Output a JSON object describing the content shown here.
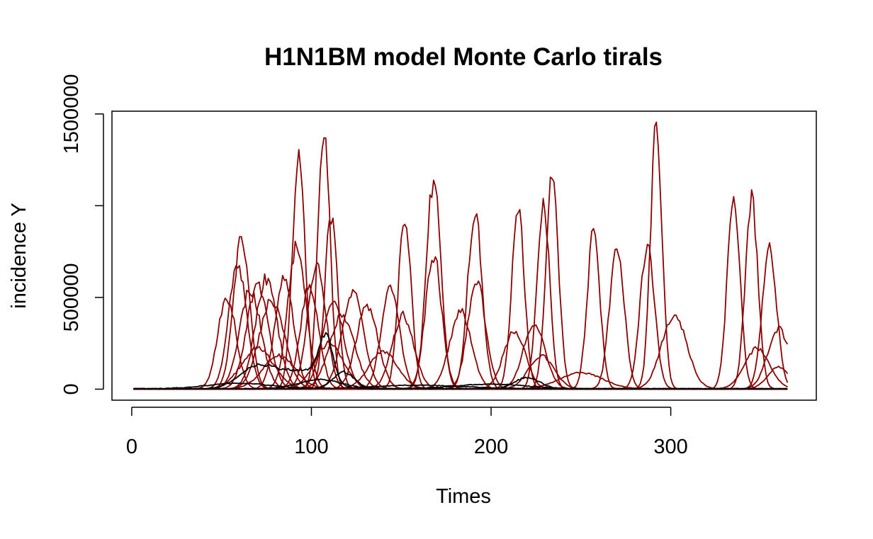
{
  "chart_data": {
    "type": "line",
    "title": "H1N1BM model Monte Carlo tirals",
    "xlabel": "Times",
    "ylabel": "incidence Y",
    "xlim": [
      -11,
      381
    ],
    "ylim": [
      -60000,
      1515000
    ],
    "x_ticks": [
      0,
      100,
      200,
      300
    ],
    "y_ticks": [
      0,
      500000,
      1500000
    ],
    "y_minor_ticks": [
      1000000
    ],
    "x_tick_labels": [
      "0",
      "100",
      "200",
      "300"
    ],
    "y_tick_labels": [
      "0",
      "500000",
      "1500000"
    ],
    "grid": false,
    "legend": "none",
    "colors": {
      "trial": "#8b0000",
      "baseline": "#000000"
    },
    "series_style": {
      "trial_curve_shape": "epidemic-peaks",
      "baseline_curve_shape": "low-waves"
    },
    "series": [
      {
        "kind": "trial",
        "peaks": [
          [
            61,
            820000,
            4.5
          ],
          [
            228,
            180000,
            7
          ]
        ]
      },
      {
        "kind": "trial",
        "peaks": [
          [
            93,
            1240000,
            3.5
          ],
          [
            292,
            1420000,
            3.2
          ]
        ]
      },
      {
        "kind": "trial",
        "peaks": [
          [
            107,
            1450000,
            3.3
          ],
          [
            345,
            1040000,
            3.5
          ]
        ]
      },
      {
        "kind": "trial",
        "peaks": [
          [
            168,
            1140000,
            4
          ],
          [
            335,
            1070000,
            3.5
          ]
        ]
      },
      {
        "kind": "trial",
        "peaks": [
          [
            234,
            1140000,
            3.5
          ],
          [
            355,
            760000,
            4
          ]
        ]
      },
      {
        "kind": "trial",
        "peaks": [
          [
            191,
            960000,
            4
          ],
          [
            257,
            850000,
            3.5
          ]
        ]
      },
      {
        "kind": "trial",
        "peaks": [
          [
            111,
            940000,
            3.5
          ],
          [
            270,
            780000,
            4
          ]
        ]
      },
      {
        "kind": "trial",
        "peaks": [
          [
            152,
            940000,
            3.5
          ],
          [
            229,
            1020000,
            3.5
          ]
        ]
      },
      {
        "kind": "trial",
        "peaks": [
          [
            215,
            980000,
            3.5
          ],
          [
            287,
            780000,
            4
          ]
        ]
      },
      {
        "kind": "trial",
        "peaks": [
          [
            92,
            790000,
            5
          ],
          [
            302,
            400000,
            7
          ]
        ]
      },
      {
        "kind": "trial",
        "peaks": [
          [
            59,
            680000,
            5
          ],
          [
            168,
            730000,
            4.5
          ]
        ]
      },
      {
        "kind": "trial",
        "peaks": [
          [
            75,
            600000,
            6
          ],
          [
            192,
            580000,
            5
          ]
        ]
      },
      {
        "kind": "trial",
        "peaks": [
          [
            70,
            560000,
            6
          ],
          [
            144,
            550000,
            5
          ]
        ]
      },
      {
        "kind": "trial",
        "peaks": [
          [
            66,
            540000,
            6
          ],
          [
            112,
            470000,
            6
          ]
        ]
      },
      {
        "kind": "trial",
        "peaks": [
          [
            53,
            500000,
            5
          ],
          [
            123,
            520000,
            6
          ]
        ]
      },
      {
        "kind": "trial",
        "peaks": [
          [
            85,
            620000,
            5
          ],
          [
            348,
            220000,
            7
          ]
        ]
      },
      {
        "kind": "trial",
        "peaks": [
          [
            103,
            680000,
            5
          ],
          [
            360,
            330000,
            6
          ]
        ]
      },
      {
        "kind": "trial",
        "peaks": [
          [
            131,
            450000,
            6
          ],
          [
            213,
            320000,
            6
          ]
        ]
      },
      {
        "kind": "trial",
        "peaks": [
          [
            78,
            480000,
            7
          ],
          [
            151,
            400000,
            6
          ]
        ]
      },
      {
        "kind": "trial",
        "peaks": [
          [
            117,
            400000,
            7
          ],
          [
            224,
            360000,
            6
          ]
        ]
      },
      {
        "kind": "trial",
        "peaks": [
          [
            99,
            560000,
            5
          ],
          [
            183,
            420000,
            6
          ]
        ]
      },
      {
        "kind": "trial",
        "peaks": [
          [
            70,
            220000,
            9
          ],
          [
            140,
            200000,
            8
          ]
        ]
      },
      {
        "kind": "trial",
        "peaks": [
          [
            110,
            250000,
            8
          ],
          [
            360,
            120000,
            6
          ]
        ]
      },
      {
        "kind": "trial",
        "peaks": [
          [
            82,
            180000,
            9
          ],
          [
            250,
            90000,
            12
          ]
        ]
      },
      {
        "kind": "baseline",
        "peaks": [
          [
            70,
            120000,
            10
          ],
          [
            108,
            240000,
            4
          ],
          [
            95,
            95000,
            12
          ]
        ]
      },
      {
        "kind": "baseline",
        "peaks": [
          [
            118,
            90000,
            6
          ],
          [
            220,
            60000,
            7
          ]
        ]
      },
      {
        "kind": "baseline",
        "peaks": [
          [
            105,
            50000,
            12
          ],
          [
            200,
            25000,
            20
          ]
        ]
      },
      {
        "kind": "baseline",
        "peaks": [
          [
            60,
            30000,
            18
          ],
          [
            160,
            20000,
            25
          ]
        ]
      }
    ]
  }
}
